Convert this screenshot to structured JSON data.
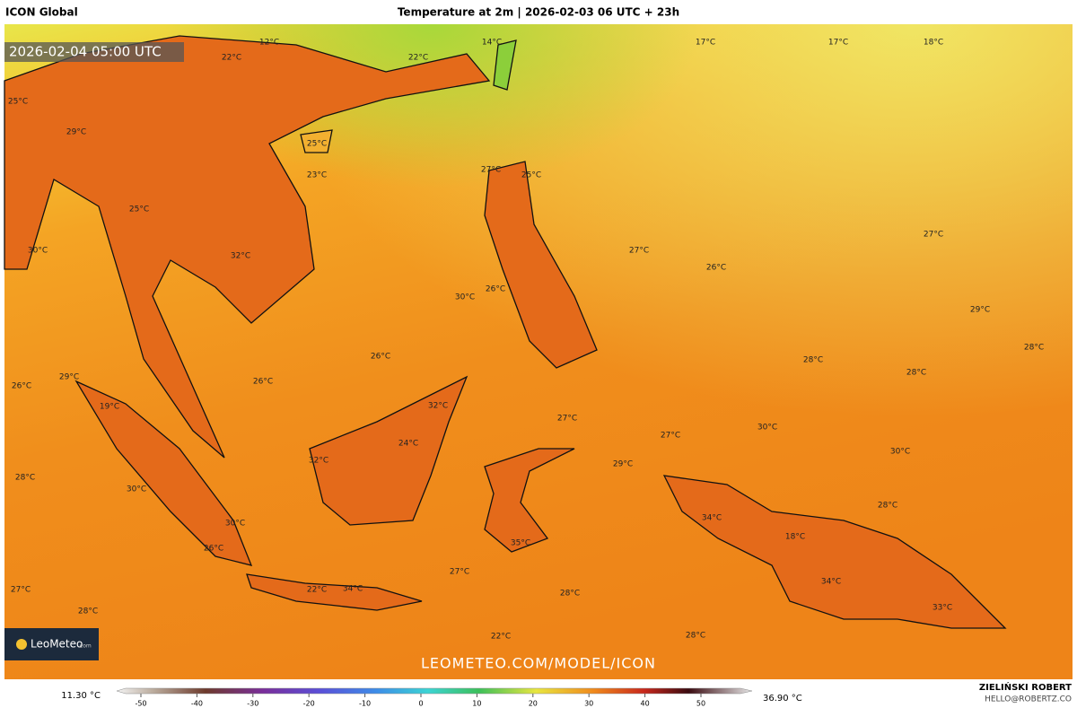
{
  "header": {
    "model": "ICON Global",
    "title": "Temperature at 2m | 2026-02-03 06 UTC + 23h"
  },
  "map": {
    "valid_time": "2026-02-04 05:00 UTC",
    "temperature_labels": [
      "12°C",
      "22°C",
      "22°C",
      "14°C",
      "17°C",
      "17°C",
      "18°C",
      "25°C",
      "29°C",
      "25°C",
      "23°C",
      "27°C",
      "25°C",
      "25°C",
      "27°C",
      "27°C",
      "30°C",
      "32°C",
      "26°C",
      "30°C",
      "26°C",
      "29°C",
      "28°C",
      "26°C",
      "28°C",
      "28°C",
      "26°C",
      "29°C",
      "26°C",
      "19°C",
      "32°C",
      "27°C",
      "30°C",
      "27°C",
      "24°C",
      "32°C",
      "29°C",
      "30°C",
      "28°C",
      "30°C",
      "28°C",
      "34°C",
      "30°C",
      "18°C",
      "35°C",
      "26°C",
      "27°C",
      "34°C",
      "22°C",
      "34°C",
      "28°C",
      "27°C",
      "33°C",
      "28°C",
      "22°C",
      "28°C"
    ],
    "logo": "LeoMeteo",
    "logo_suffix": ".com",
    "url": "LEOMETEO.COM/MODEL/ICON"
  },
  "colorbar": {
    "min_label": "11.30 °C",
    "max_label": "36.90 °C",
    "ticks": [
      -50,
      -40,
      -30,
      -20,
      -10,
      0,
      10,
      20,
      30,
      40,
      50
    ]
  },
  "footer": {
    "author": "ZIELIŃSKI ROBERT",
    "email": "HELLO@ROBERTZ.CO"
  }
}
